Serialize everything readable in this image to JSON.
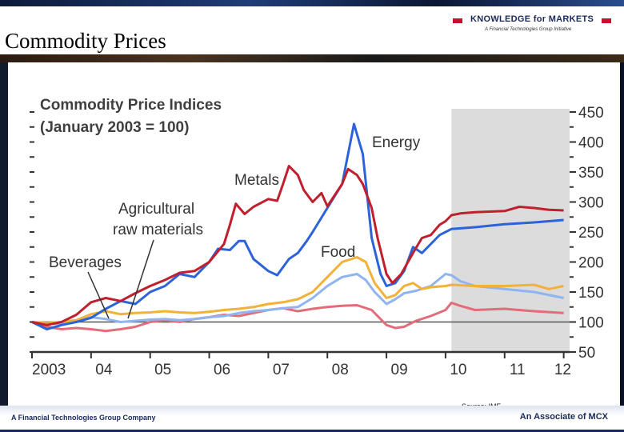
{
  "slide": {
    "title": "Commodity Prices",
    "brand_name": "KNOWLEDGE for MARKETS",
    "brand_tagline": "A Financial Technologies Group Initiative",
    "source": "Source: IMF",
    "footer_left": "A Financial Technologies Group Company",
    "footer_right": "An Associate of MCX"
  },
  "colors": {
    "metals": "#c0202e",
    "energy": "#2d63d8",
    "food": "#f2b23a",
    "agricultural_raw_materials": "#8fb4ef",
    "beverages": "#e36c7a",
    "forecast_shade": "#dcdcdc",
    "title_text": "#3f3f3f"
  },
  "chart_data": {
    "type": "line",
    "title": "Commodity Price Indices",
    "subtitle": "(January 2003 = 100)",
    "xlabel": "",
    "ylabel": "",
    "xlim": [
      2003,
      2012.1
    ],
    "ylim": [
      50,
      450
    ],
    "x_ticks": [
      {
        "value": 2003,
        "label": "2003"
      },
      {
        "value": 2004,
        "label": "04"
      },
      {
        "value": 2005,
        "label": "05"
      },
      {
        "value": 2006,
        "label": "06"
      },
      {
        "value": 2007,
        "label": "07"
      },
      {
        "value": 2008,
        "label": "08"
      },
      {
        "value": 2009,
        "label": "09"
      },
      {
        "value": 2010,
        "label": "10"
      },
      {
        "value": 2011,
        "label": "11"
      },
      {
        "value": 2012,
        "label": "12"
      }
    ],
    "y_ticks": [
      450,
      400,
      350,
      300,
      250,
      200,
      150,
      100,
      50
    ],
    "y_axis_side": "right",
    "reference_line": 100,
    "forecast_start": 2010.1,
    "grid": false,
    "legend": "inline labels",
    "series": [
      {
        "name": "Metals",
        "color_key": "metals",
        "points": [
          [
            2003,
            100
          ],
          [
            2003.25,
            95
          ],
          [
            2003.5,
            100
          ],
          [
            2003.75,
            112
          ],
          [
            2004,
            133
          ],
          [
            2004.25,
            140
          ],
          [
            2004.5,
            135
          ],
          [
            2004.75,
            148
          ],
          [
            2005,
            160
          ],
          [
            2005.25,
            170
          ],
          [
            2005.5,
            182
          ],
          [
            2005.75,
            185
          ],
          [
            2006,
            200
          ],
          [
            2006.25,
            230
          ],
          [
            2006.35,
            262
          ],
          [
            2006.45,
            297
          ],
          [
            2006.6,
            280
          ],
          [
            2006.75,
            292
          ],
          [
            2007,
            305
          ],
          [
            2007.15,
            302
          ],
          [
            2007.25,
            330
          ],
          [
            2007.35,
            360
          ],
          [
            2007.5,
            345
          ],
          [
            2007.6,
            320
          ],
          [
            2007.75,
            300
          ],
          [
            2007.9,
            315
          ],
          [
            2008,
            293
          ],
          [
            2008.25,
            330
          ],
          [
            2008.35,
            355
          ],
          [
            2008.5,
            345
          ],
          [
            2008.6,
            330
          ],
          [
            2008.75,
            290
          ],
          [
            2008.85,
            240
          ],
          [
            2009,
            180
          ],
          [
            2009.1,
            165
          ],
          [
            2009.25,
            180
          ],
          [
            2009.45,
            215
          ],
          [
            2009.6,
            240
          ],
          [
            2009.75,
            245
          ],
          [
            2009.9,
            262
          ],
          [
            2010,
            268
          ],
          [
            2010.1,
            278
          ],
          [
            2010.25,
            281
          ],
          [
            2010.5,
            283
          ],
          [
            2010.75,
            284
          ],
          [
            2011,
            285
          ],
          [
            2011.25,
            292
          ],
          [
            2011.5,
            290
          ],
          [
            2011.75,
            287
          ],
          [
            2012,
            286
          ]
        ]
      },
      {
        "name": "Energy",
        "color_key": "energy",
        "points": [
          [
            2003,
            100
          ],
          [
            2003.25,
            88
          ],
          [
            2003.5,
            95
          ],
          [
            2003.75,
            100
          ],
          [
            2004,
            107
          ],
          [
            2004.25,
            122
          ],
          [
            2004.5,
            135
          ],
          [
            2004.75,
            130
          ],
          [
            2005,
            150
          ],
          [
            2005.25,
            160
          ],
          [
            2005.5,
            180
          ],
          [
            2005.75,
            175
          ],
          [
            2006,
            200
          ],
          [
            2006.15,
            222
          ],
          [
            2006.35,
            220
          ],
          [
            2006.5,
            235
          ],
          [
            2006.6,
            235
          ],
          [
            2006.75,
            205
          ],
          [
            2007,
            185
          ],
          [
            2007.15,
            178
          ],
          [
            2007.35,
            205
          ],
          [
            2007.5,
            215
          ],
          [
            2007.65,
            235
          ],
          [
            2007.75,
            250
          ],
          [
            2008,
            290
          ],
          [
            2008.25,
            330
          ],
          [
            2008.45,
            430
          ],
          [
            2008.6,
            380
          ],
          [
            2008.75,
            240
          ],
          [
            2008.9,
            180
          ],
          [
            2009,
            160
          ],
          [
            2009.15,
            165
          ],
          [
            2009.3,
            185
          ],
          [
            2009.45,
            225
          ],
          [
            2009.6,
            215
          ],
          [
            2009.75,
            230
          ],
          [
            2009.9,
            245
          ],
          [
            2010,
            250
          ],
          [
            2010.1,
            255
          ],
          [
            2010.5,
            258
          ],
          [
            2011,
            263
          ],
          [
            2011.5,
            266
          ],
          [
            2012,
            270
          ]
        ]
      },
      {
        "name": "Food",
        "color_key": "food",
        "points": [
          [
            2003,
            100
          ],
          [
            2003.25,
            98
          ],
          [
            2003.5,
            100
          ],
          [
            2003.75,
            103
          ],
          [
            2004,
            113
          ],
          [
            2004.25,
            118
          ],
          [
            2004.5,
            113
          ],
          [
            2004.75,
            115
          ],
          [
            2005,
            116
          ],
          [
            2005.25,
            118
          ],
          [
            2005.5,
            116
          ],
          [
            2005.75,
            115
          ],
          [
            2006,
            117
          ],
          [
            2006.25,
            120
          ],
          [
            2006.5,
            122
          ],
          [
            2006.75,
            125
          ],
          [
            2007,
            130
          ],
          [
            2007.25,
            133
          ],
          [
            2007.5,
            138
          ],
          [
            2007.75,
            150
          ],
          [
            2008,
            175
          ],
          [
            2008.25,
            200
          ],
          [
            2008.5,
            208
          ],
          [
            2008.65,
            200
          ],
          [
            2008.8,
            165
          ],
          [
            2009,
            140
          ],
          [
            2009.15,
            145
          ],
          [
            2009.3,
            160
          ],
          [
            2009.45,
            165
          ],
          [
            2009.6,
            155
          ],
          [
            2009.75,
            158
          ],
          [
            2010,
            160
          ],
          [
            2010.1,
            162
          ],
          [
            2010.5,
            160
          ],
          [
            2011,
            160
          ],
          [
            2011.5,
            162
          ],
          [
            2011.75,
            155
          ],
          [
            2012,
            160
          ]
        ]
      },
      {
        "name": "Agricultural raw materials",
        "color_key": "agricultural_raw_materials",
        "points": [
          [
            2003,
            100
          ],
          [
            2003.25,
            96
          ],
          [
            2003.5,
            98
          ],
          [
            2003.75,
            102
          ],
          [
            2004,
            108
          ],
          [
            2004.25,
            105
          ],
          [
            2004.5,
            100
          ],
          [
            2004.75,
            102
          ],
          [
            2005,
            104
          ],
          [
            2005.25,
            105
          ],
          [
            2005.5,
            103
          ],
          [
            2005.75,
            105
          ],
          [
            2006,
            108
          ],
          [
            2006.25,
            110
          ],
          [
            2006.5,
            115
          ],
          [
            2006.75,
            118
          ],
          [
            2007,
            120
          ],
          [
            2007.25,
            123
          ],
          [
            2007.5,
            125
          ],
          [
            2007.75,
            140
          ],
          [
            2008,
            160
          ],
          [
            2008.25,
            175
          ],
          [
            2008.5,
            180
          ],
          [
            2008.65,
            170
          ],
          [
            2008.8,
            150
          ],
          [
            2009,
            130
          ],
          [
            2009.15,
            138
          ],
          [
            2009.3,
            148
          ],
          [
            2009.5,
            152
          ],
          [
            2009.75,
            160
          ],
          [
            2010,
            180
          ],
          [
            2010.1,
            178
          ],
          [
            2010.25,
            168
          ],
          [
            2010.5,
            160
          ],
          [
            2011,
            155
          ],
          [
            2011.5,
            150
          ],
          [
            2012,
            140
          ]
        ]
      },
      {
        "name": "Beverages",
        "color_key": "beverages",
        "points": [
          [
            2003,
            100
          ],
          [
            2003.25,
            92
          ],
          [
            2003.5,
            88
          ],
          [
            2003.75,
            90
          ],
          [
            2004,
            88
          ],
          [
            2004.25,
            85
          ],
          [
            2004.5,
            88
          ],
          [
            2004.75,
            92
          ],
          [
            2005,
            100
          ],
          [
            2005.25,
            103
          ],
          [
            2005.5,
            100
          ],
          [
            2005.75,
            105
          ],
          [
            2006,
            108
          ],
          [
            2006.25,
            112
          ],
          [
            2006.5,
            110
          ],
          [
            2006.75,
            115
          ],
          [
            2007,
            120
          ],
          [
            2007.25,
            123
          ],
          [
            2007.5,
            118
          ],
          [
            2007.75,
            122
          ],
          [
            2008,
            125
          ],
          [
            2008.25,
            127
          ],
          [
            2008.5,
            128
          ],
          [
            2008.75,
            120
          ],
          [
            2009,
            95
          ],
          [
            2009.15,
            90
          ],
          [
            2009.3,
            92
          ],
          [
            2009.5,
            102
          ],
          [
            2009.75,
            110
          ],
          [
            2010,
            120
          ],
          [
            2010.1,
            132
          ],
          [
            2010.25,
            127
          ],
          [
            2010.5,
            120
          ],
          [
            2011,
            122
          ],
          [
            2011.5,
            118
          ],
          [
            2012,
            115
          ]
        ]
      }
    ],
    "annotations": [
      {
        "text": "Energy",
        "series": "Energy"
      },
      {
        "text": "Metals",
        "series": "Metals"
      },
      {
        "text": "Food",
        "series": "Food"
      },
      {
        "text": "Agricultural",
        "series": "Agricultural raw materials"
      },
      {
        "text": "raw materials",
        "series": "Agricultural raw materials"
      },
      {
        "text": "Beverages",
        "series": "Beverages"
      }
    ]
  }
}
